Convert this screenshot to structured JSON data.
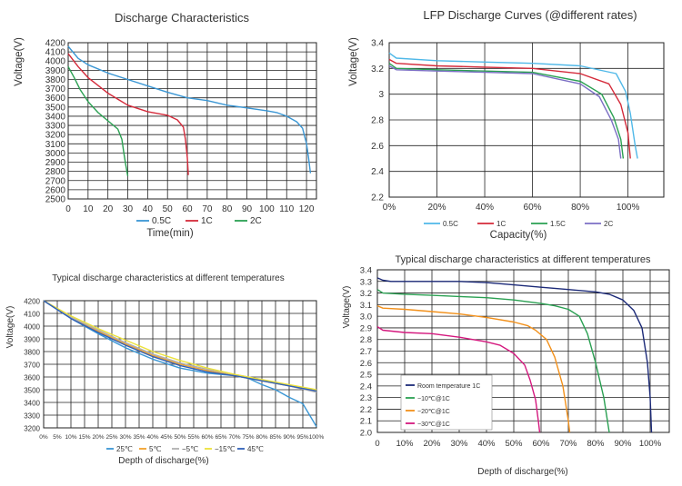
{
  "chart_data": [
    {
      "type": "line",
      "title": "Discharge Characteristics",
      "xlabel": "Time(min)",
      "ylabel": "Voltage(V)",
      "xlim": [
        0,
        125
      ],
      "ylim": [
        2500,
        4200
      ],
      "x_ticks": [
        "0",
        "10",
        "20",
        "30",
        "40",
        "50",
        "60",
        "70",
        "80",
        "90",
        "100",
        "110",
        "120"
      ],
      "y_ticks": [
        "4200",
        "4100",
        "4000",
        "3900",
        "3800",
        "3700",
        "3600",
        "3500",
        "3400",
        "3300",
        "3200",
        "3100",
        "3000",
        "2900",
        "2800",
        "2700",
        "2600",
        "2500"
      ],
      "grid": true,
      "legend_position": "bottom",
      "series": [
        {
          "name": "0.5C",
          "color": "#3a96d4",
          "points": [
            [
              0,
              4160
            ],
            [
              5,
              4030
            ],
            [
              10,
              3960
            ],
            [
              20,
              3870
            ],
            [
              30,
              3800
            ],
            [
              40,
              3730
            ],
            [
              50,
              3660
            ],
            [
              60,
              3600
            ],
            [
              70,
              3570
            ],
            [
              80,
              3520
            ],
            [
              90,
              3490
            ],
            [
              100,
              3460
            ],
            [
              105,
              3440
            ],
            [
              110,
              3400
            ],
            [
              115,
              3340
            ],
            [
              118,
              3270
            ],
            [
              120,
              3100
            ],
            [
              121,
              2950
            ],
            [
              122,
              2780
            ]
          ]
        },
        {
          "name": "1C",
          "color": "#d42a3a",
          "points": [
            [
              0,
              4080
            ],
            [
              5,
              3940
            ],
            [
              10,
              3820
            ],
            [
              20,
              3650
            ],
            [
              30,
              3520
            ],
            [
              40,
              3450
            ],
            [
              50,
              3410
            ],
            [
              55,
              3360
            ],
            [
              58,
              3280
            ],
            [
              59,
              3150
            ],
            [
              60,
              2950
            ],
            [
              60.5,
              2760
            ]
          ]
        },
        {
          "name": "2C",
          "color": "#2aa052",
          "points": [
            [
              0,
              3940
            ],
            [
              3,
              3820
            ],
            [
              6,
              3690
            ],
            [
              10,
              3560
            ],
            [
              15,
              3440
            ],
            [
              20,
              3350
            ],
            [
              25,
              3260
            ],
            [
              27,
              3150
            ],
            [
              28,
              3000
            ],
            [
              29,
              2870
            ],
            [
              30,
              2750
            ]
          ]
        }
      ]
    },
    {
      "type": "line",
      "title": "LFP Discharge Curves (@different rates)",
      "xlabel": "Capacity(%)",
      "ylabel": "Voltage(V)",
      "xlim": [
        0,
        115
      ],
      "ylim": [
        2.2,
        3.4
      ],
      "x_ticks": [
        "0%",
        "20%",
        "40%",
        "60%",
        "80%",
        "100%"
      ],
      "y_ticks": [
        "3.4",
        "3.2",
        "3",
        "2.8",
        "2.6",
        "2.4",
        "2.2"
      ],
      "grid": true,
      "legend_position": "bottom",
      "series": [
        {
          "name": "0.5C",
          "color": "#4fb8e8",
          "points": [
            [
              0,
              3.32
            ],
            [
              3,
              3.28
            ],
            [
              20,
              3.26
            ],
            [
              40,
              3.25
            ],
            [
              60,
              3.24
            ],
            [
              80,
              3.22
            ],
            [
              95,
              3.16
            ],
            [
              99,
              3.02
            ],
            [
              101,
              2.85
            ],
            [
              103,
              2.6
            ],
            [
              104,
              2.5
            ]
          ]
        },
        {
          "name": "1C",
          "color": "#d42a3a",
          "points": [
            [
              0,
              3.27
            ],
            [
              3,
              3.24
            ],
            [
              20,
              3.22
            ],
            [
              40,
              3.21
            ],
            [
              60,
              3.2
            ],
            [
              80,
              3.16
            ],
            [
              92,
              3.08
            ],
            [
              97,
              2.92
            ],
            [
              100,
              2.7
            ],
            [
              101,
              2.5
            ]
          ]
        },
        {
          "name": "1.5C",
          "color": "#2aa052",
          "points": [
            [
              0,
              3.24
            ],
            [
              3,
              3.2
            ],
            [
              20,
              3.19
            ],
            [
              40,
              3.18
            ],
            [
              60,
              3.17
            ],
            [
              80,
              3.1
            ],
            [
              89,
              3
            ],
            [
              94,
              2.82
            ],
            [
              97,
              2.65
            ],
            [
              98,
              2.5
            ]
          ]
        },
        {
          "name": "2C",
          "color": "#7b6fc4",
          "points": [
            [
              0,
              3.22
            ],
            [
              3,
              3.19
            ],
            [
              20,
              3.18
            ],
            [
              40,
              3.17
            ],
            [
              60,
              3.16
            ],
            [
              80,
              3.08
            ],
            [
              88,
              2.98
            ],
            [
              93,
              2.8
            ],
            [
              96,
              2.65
            ],
            [
              97,
              2.5
            ]
          ]
        }
      ]
    },
    {
      "type": "line",
      "title": "Typical discharge characteristics at different temperatures",
      "xlabel": "Depth of discharge(%)",
      "ylabel": "Voltage(V)",
      "xlim": [
        0,
        100
      ],
      "ylim": [
        3200,
        4200
      ],
      "x_ticks": [
        "0%",
        "5%",
        "10%",
        "15%",
        "20%",
        "25%",
        "30%",
        "35%",
        "40%",
        "45%",
        "50%",
        "55%",
        "60%",
        "65%",
        "70%",
        "75%",
        "80%",
        "85%",
        "90%",
        "95%",
        "100%"
      ],
      "y_ticks": [
        "4200",
        "4100",
        "4000",
        "3900",
        "3800",
        "3700",
        "3600",
        "3500",
        "3400",
        "3300",
        "3200"
      ],
      "grid": true,
      "legend_position": "bottom",
      "series": [
        {
          "name": "25℃",
          "color": "#3a96d4",
          "points": [
            [
              0,
              4200
            ],
            [
              10,
              4060
            ],
            [
              20,
              3940
            ],
            [
              30,
              3830
            ],
            [
              40,
              3740
            ],
            [
              50,
              3670
            ],
            [
              60,
              3630
            ],
            [
              70,
              3610
            ],
            [
              75,
              3590
            ],
            [
              80,
              3540
            ],
            [
              85,
              3500
            ],
            [
              90,
              3440
            ],
            [
              95,
              3390
            ],
            [
              100,
              3210
            ]
          ]
        },
        {
          "name": "5℃",
          "color": "#f2a12a",
          "points": [
            [
              0,
              4200
            ],
            [
              10,
              4070
            ],
            [
              20,
              3960
            ],
            [
              30,
              3860
            ],
            [
              40,
              3770
            ],
            [
              50,
              3700
            ],
            [
              60,
              3650
            ],
            [
              70,
              3610
            ],
            [
              80,
              3570
            ],
            [
              90,
              3530
            ],
            [
              100,
              3490
            ]
          ]
        },
        {
          "name": "−5℃",
          "color": "#b0b0b0",
          "points": [
            [
              0,
              4200
            ],
            [
              10,
              4070
            ],
            [
              20,
              3970
            ],
            [
              30,
              3870
            ],
            [
              40,
              3780
            ],
            [
              50,
              3710
            ],
            [
              60,
              3660
            ],
            [
              70,
              3620
            ],
            [
              80,
              3580
            ],
            [
              90,
              3530
            ],
            [
              100,
              3480
            ]
          ]
        },
        {
          "name": "−15℃",
          "color": "#ece13a",
          "points": [
            [
              0,
              4200
            ],
            [
              10,
              4080
            ],
            [
              20,
              3980
            ],
            [
              30,
              3890
            ],
            [
              40,
              3800
            ],
            [
              50,
              3730
            ],
            [
              60,
              3670
            ],
            [
              70,
              3620
            ],
            [
              80,
              3580
            ],
            [
              90,
              3540
            ],
            [
              100,
              3500
            ]
          ]
        },
        {
          "name": "45℃",
          "color": "#3060b8",
          "points": [
            [
              0,
              4200
            ],
            [
              10,
              4060
            ],
            [
              20,
              3950
            ],
            [
              30,
              3850
            ],
            [
              40,
              3760
            ],
            [
              50,
              3690
            ],
            [
              60,
              3640
            ],
            [
              70,
              3610
            ],
            [
              80,
              3570
            ],
            [
              90,
              3530
            ],
            [
              100,
              3490
            ]
          ]
        }
      ]
    },
    {
      "type": "line",
      "title": "Typical discharge characteristics at different temperatures",
      "xlabel": "Depth of discharge(%)",
      "ylabel": "Voltage(V)",
      "xlim": [
        0,
        107
      ],
      "ylim": [
        2.0,
        3.4
      ],
      "x_ticks": [
        "0",
        "10%",
        "20%",
        "30%",
        "40%",
        "50%",
        "60%",
        "70%",
        "80%",
        "90%",
        "100%"
      ],
      "y_ticks": [
        "3.4",
        "3.3",
        "3.2",
        "3.1",
        "3.0",
        "2.9",
        "2.8",
        "2.7",
        "2.6",
        "2.5",
        "2.4",
        "2.3",
        "2.2",
        "2.1",
        "2.0"
      ],
      "grid": true,
      "legend_position": "lower-left",
      "series": [
        {
          "name": "Room temperature 1C",
          "color": "#1c2a78",
          "points": [
            [
              0,
              3.33
            ],
            [
              2,
              3.31
            ],
            [
              5,
              3.3
            ],
            [
              20,
              3.3
            ],
            [
              30,
              3.3
            ],
            [
              40,
              3.29
            ],
            [
              50,
              3.27
            ],
            [
              60,
              3.25
            ],
            [
              70,
              3.23
            ],
            [
              80,
              3.21
            ],
            [
              85,
              3.19
            ],
            [
              90,
              3.14
            ],
            [
              94,
              3.05
            ],
            [
              97,
              2.9
            ],
            [
              99,
              2.6
            ],
            [
              100,
              2.3
            ],
            [
              100.5,
              2.0
            ]
          ]
        },
        {
          "name": "−10℃@1C",
          "color": "#2aa052",
          "points": [
            [
              0,
              3.23
            ],
            [
              2,
              3.2
            ],
            [
              10,
              3.19
            ],
            [
              20,
              3.18
            ],
            [
              30,
              3.17
            ],
            [
              40,
              3.16
            ],
            [
              50,
              3.14
            ],
            [
              60,
              3.11
            ],
            [
              65,
              3.09
            ],
            [
              70,
              3.06
            ],
            [
              74,
              3.0
            ],
            [
              77,
              2.85
            ],
            [
              80,
              2.6
            ],
            [
              83,
              2.3
            ],
            [
              85,
              2.0
            ]
          ]
        },
        {
          "name": "−20℃@1C",
          "color": "#f2901a",
          "points": [
            [
              0,
              3.09
            ],
            [
              2,
              3.07
            ],
            [
              10,
              3.06
            ],
            [
              20,
              3.04
            ],
            [
              30,
              3.02
            ],
            [
              40,
              2.99
            ],
            [
              50,
              2.95
            ],
            [
              55,
              2.92
            ],
            [
              58,
              2.88
            ],
            [
              62,
              2.8
            ],
            [
              65,
              2.65
            ],
            [
              68,
              2.4
            ],
            [
              70,
              2.1
            ],
            [
              70.5,
              2.0
            ]
          ]
        },
        {
          "name": "−30℃@1C",
          "color": "#d4187e",
          "points": [
            [
              0,
              2.91
            ],
            [
              2,
              2.88
            ],
            [
              10,
              2.86
            ],
            [
              20,
              2.85
            ],
            [
              30,
              2.82
            ],
            [
              40,
              2.78
            ],
            [
              45,
              2.75
            ],
            [
              50,
              2.68
            ],
            [
              54,
              2.58
            ],
            [
              56,
              2.45
            ],
            [
              58,
              2.28
            ],
            [
              59,
              2.1
            ],
            [
              59.5,
              2.0
            ]
          ]
        }
      ]
    }
  ]
}
